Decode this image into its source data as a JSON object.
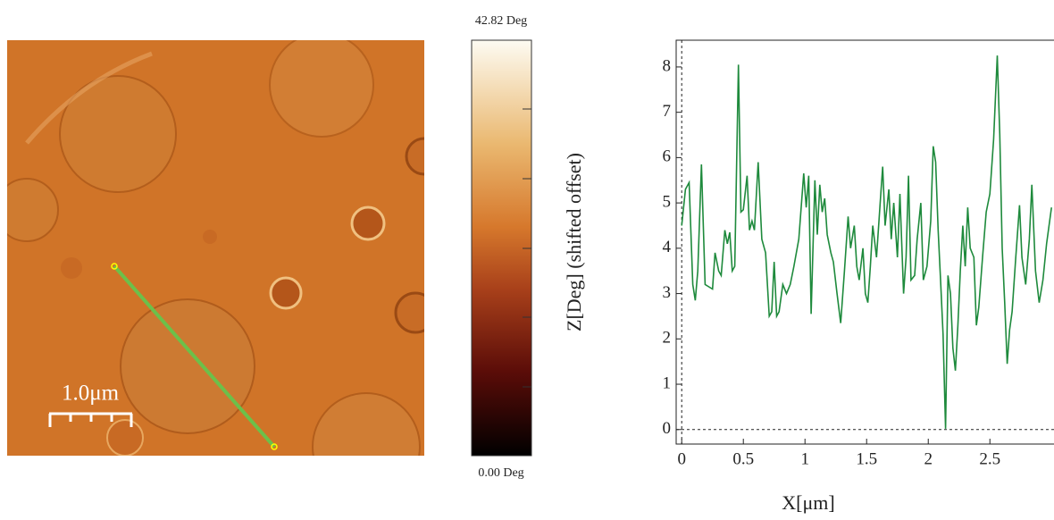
{
  "image": {
    "scale_bar": "1.0μm",
    "colorbar": {
      "top": "42.82 Deg",
      "bottom": "0.00 Deg"
    }
  },
  "chart_data": {
    "type": "line",
    "x_label": "X[μm]",
    "y_label": "Z[Deg] (shifted offset)",
    "x": [
      0,
      0.03,
      0.06,
      0.09,
      0.11,
      0.13,
      0.16,
      0.19,
      0.22,
      0.25,
      0.27,
      0.3,
      0.32,
      0.35,
      0.37,
      0.39,
      0.41,
      0.43,
      0.46,
      0.48,
      0.5,
      0.53,
      0.55,
      0.57,
      0.59,
      0.62,
      0.65,
      0.68,
      0.71,
      0.73,
      0.75,
      0.77,
      0.79,
      0.82,
      0.85,
      0.88,
      0.91,
      0.95,
      0.99,
      1.01,
      1.03,
      1.05,
      1.08,
      1.1,
      1.12,
      1.14,
      1.16,
      1.18,
      1.21,
      1.23,
      1.26,
      1.29,
      1.32,
      1.35,
      1.37,
      1.4,
      1.42,
      1.44,
      1.47,
      1.49,
      1.51,
      1.53,
      1.55,
      1.58,
      1.61,
      1.63,
      1.65,
      1.68,
      1.7,
      1.72,
      1.75,
      1.77,
      1.8,
      1.82,
      1.84,
      1.86,
      1.89,
      1.91,
      1.94,
      1.96,
      1.99,
      2.02,
      2.04,
      2.06,
      2.08,
      2.1,
      2.12,
      2.14,
      2.16,
      2.18,
      2.2,
      2.22,
      2.24,
      2.26,
      2.28,
      2.3,
      2.32,
      2.34,
      2.37,
      2.39,
      2.41,
      2.44,
      2.47,
      2.5,
      2.53,
      2.56,
      2.58,
      2.6,
      2.62,
      2.64,
      2.66,
      2.68,
      2.71,
      2.74,
      2.76,
      2.79,
      2.82,
      2.84,
      2.87,
      2.9,
      2.93,
      2.96,
      3.0
    ],
    "series": [
      {
        "color": "#1e8a3c",
        "values": [
          4.5,
          5.3,
          5.45,
          3.2,
          2.85,
          3.5,
          5.85,
          3.2,
          3.15,
          3.1,
          3.9,
          3.5,
          3.4,
          4.4,
          4.1,
          4.35,
          3.5,
          3.6,
          8.05,
          4.8,
          4.85,
          5.6,
          4.4,
          4.6,
          4.4,
          5.9,
          4.2,
          3.9,
          2.5,
          2.6,
          3.7,
          2.5,
          2.6,
          3.2,
          3.0,
          3.2,
          3.6,
          4.2,
          5.65,
          4.9,
          5.6,
          2.55,
          5.5,
          4.3,
          5.4,
          4.8,
          5.1,
          4.3,
          3.9,
          3.7,
          3.0,
          2.35,
          3.5,
          4.7,
          4.0,
          4.5,
          3.6,
          3.3,
          4.0,
          3.0,
          2.8,
          3.6,
          4.5,
          3.8,
          5.0,
          5.8,
          4.5,
          5.3,
          4.2,
          5.0,
          3.8,
          5.2,
          3.0,
          3.8,
          5.6,
          3.3,
          3.4,
          4.2,
          5.0,
          3.3,
          3.6,
          4.6,
          6.25,
          5.9,
          4.4,
          3.3,
          2.1,
          0.02,
          3.4,
          3.0,
          1.8,
          1.3,
          2.3,
          3.5,
          4.5,
          3.6,
          4.9,
          4.0,
          3.8,
          2.3,
          2.7,
          3.8,
          4.8,
          5.2,
          6.4,
          8.25,
          6.5,
          4.0,
          2.8,
          1.45,
          2.2,
          2.6,
          3.8,
          4.95,
          3.8,
          3.2,
          4.2,
          5.4,
          3.5,
          2.8,
          3.3,
          4.1,
          4.9
        ]
      }
    ],
    "xlim": [
      -0.045,
      3.02
    ],
    "ylim": [
      -0.32,
      8.59
    ],
    "xticks": [
      0,
      0.5,
      1,
      1.5,
      2,
      2.5
    ],
    "yticks": [
      0,
      1,
      2,
      3,
      4,
      5,
      6,
      7,
      8
    ]
  }
}
